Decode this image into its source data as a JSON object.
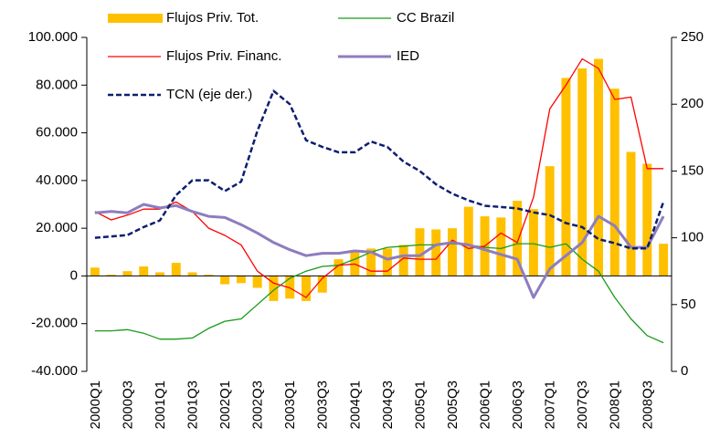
{
  "chart_data": {
    "type": "combo",
    "categories": [
      "2000Q1",
      null,
      "2000Q3",
      null,
      "2001Q1",
      null,
      "2001Q3",
      null,
      "2002Q1",
      null,
      "2002Q3",
      null,
      "2003Q1",
      null,
      "2003Q3",
      null,
      "2004Q1",
      null,
      "2004Q3",
      null,
      "2005Q1",
      null,
      "2005Q3",
      null,
      "2006Q1",
      null,
      "2006Q3",
      null,
      "2007Q1",
      null,
      "2007Q3",
      null,
      "2008Q1",
      null,
      "2008Q3",
      null
    ],
    "ylim": [
      -40000,
      100000
    ],
    "yticks": [
      {
        "value": -40000,
        "label": "-40.000"
      },
      {
        "value": -20000,
        "label": "-20.000"
      },
      0,
      {
        "value": 20000,
        "label": "20.000"
      },
      {
        "value": 40000,
        "label": "40.000"
      },
      {
        "value": 60000,
        "label": "60.000"
      },
      {
        "value": 80000,
        "label": "80.000"
      },
      {
        "value": 100000,
        "label": "100.000"
      }
    ],
    "y2lim": [
      0,
      250
    ],
    "y2ticks": [
      0,
      50,
      100,
      150,
      200,
      250
    ],
    "series": [
      {
        "name": "Flujos Priv. Tot.",
        "kind": "bar",
        "color": "#ffc000",
        "values": [
          3500,
          500,
          2000,
          4000,
          1500,
          5500,
          1500,
          500,
          -3500,
          -3000,
          -5000,
          -10500,
          -9500,
          -10500,
          -7000,
          7000,
          10000,
          11500,
          11500,
          13000,
          20000,
          19500,
          20000,
          29000,
          25000,
          24500,
          31500,
          28000,
          46000,
          83000,
          87000,
          91000,
          78500,
          52000,
          47000,
          13500
        ]
      },
      {
        "name": "CC Brazil",
        "kind": "line",
        "color": "#1a9a1a",
        "values": [
          -23000,
          -23000,
          -22500,
          -24000,
          -26500,
          -26500,
          -26000,
          -22000,
          -19000,
          -18000,
          -12000,
          -6000,
          -1000,
          2000,
          4000,
          4500,
          7000,
          10000,
          12000,
          12500,
          13000,
          13000,
          13500,
          13000,
          12000,
          11500,
          13500,
          13500,
          12000,
          13500,
          7000,
          2000,
          -9000,
          -18000,
          -25000,
          -28000
        ]
      },
      {
        "name": "Flujos Priv. Financ.",
        "kind": "line",
        "color": "#ff0000",
        "values": [
          27000,
          23500,
          25500,
          28000,
          28000,
          31000,
          27000,
          20000,
          17000,
          13000,
          2000,
          -3000,
          -5000,
          -9000,
          -1000,
          4500,
          5000,
          2000,
          2000,
          7500,
          7000,
          7000,
          15000,
          11500,
          12500,
          18000,
          14000,
          33000,
          70000,
          80000,
          91000,
          87000,
          74000,
          75000,
          45000,
          45000
        ]
      },
      {
        "name": "IED",
        "kind": "line",
        "color": "#8d7dbf",
        "width": 3,
        "values": [
          26500,
          27000,
          26500,
          30000,
          28500,
          29500,
          27000,
          25000,
          24500,
          21500,
          18000,
          14000,
          11000,
          8500,
          9500,
          9500,
          10500,
          10000,
          7000,
          8500,
          8500,
          13000,
          14000,
          13000,
          11000,
          9000,
          7000,
          -9000,
          3000,
          8500,
          14000,
          25000,
          21000,
          12000,
          12000,
          25000
        ]
      },
      {
        "name": "TCN (eje der.)",
        "kind": "line",
        "axis": "y2",
        "dashed": true,
        "color": "#0d1f6e",
        "width": 2.5,
        "values": [
          100,
          101,
          102,
          108,
          113,
          132,
          143,
          143,
          135,
          142,
          180,
          210,
          200,
          173,
          168,
          164,
          164,
          172,
          168,
          157,
          150,
          140,
          133,
          128,
          124,
          123,
          122,
          119,
          117,
          111,
          108,
          99,
          96,
          92,
          92,
          127
        ]
      }
    ]
  }
}
